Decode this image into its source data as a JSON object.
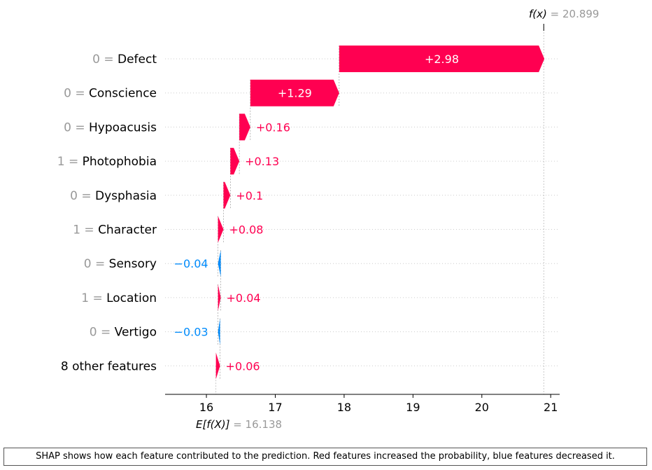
{
  "chart_data": {
    "type": "waterfall",
    "base_value": 16.138,
    "base_label": "E[f(X)]",
    "final_value": 20.899,
    "final_label": "f(x)",
    "xlim": [
      15.4,
      21.13
    ],
    "xticks": [
      16,
      17,
      18,
      19,
      20,
      21
    ],
    "colors": {
      "positive": "#ff0051",
      "negative": "#008bfb",
      "muted": "#999999",
      "axis": "#000000"
    },
    "features": [
      {
        "value": "0",
        "name": "Defect",
        "contribution": 2.98,
        "label": "+2.98"
      },
      {
        "value": "0",
        "name": "Conscience",
        "contribution": 1.29,
        "label": "+1.29"
      },
      {
        "value": "0",
        "name": "Hypoacusis",
        "contribution": 0.16,
        "label": "+0.16"
      },
      {
        "value": "1",
        "name": "Photophobia",
        "contribution": 0.13,
        "label": "+0.13"
      },
      {
        "value": "0",
        "name": "Dysphasia",
        "contribution": 0.1,
        "label": "+0.1"
      },
      {
        "value": "1",
        "name": "Character",
        "contribution": 0.08,
        "label": "+0.08"
      },
      {
        "value": "0",
        "name": "Sensory",
        "contribution": -0.04,
        "label": "−0.04"
      },
      {
        "value": "1",
        "name": "Location",
        "contribution": 0.04,
        "label": "+0.04"
      },
      {
        "value": "0",
        "name": "Vertigo",
        "contribution": -0.03,
        "label": "−0.03"
      },
      {
        "value": "",
        "name": "8 other features",
        "contribution": 0.06,
        "label": "+0.06"
      }
    ]
  },
  "caption": "SHAP shows how each feature contributed to the prediction. Red features increased the probability, blue features decreased it."
}
